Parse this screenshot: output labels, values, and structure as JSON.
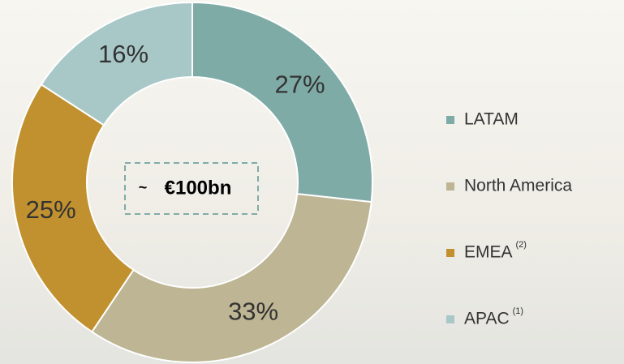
{
  "chart_data": {
    "type": "donut",
    "categories": [
      "LATAM",
      "North America",
      "EMEA",
      "APAC"
    ],
    "values": [
      27,
      33,
      25,
      16
    ],
    "value_labels": [
      "27%",
      "33%",
      "25%",
      "16%"
    ],
    "colors": [
      "#7faba7",
      "#bdb593",
      "#c1912f",
      "#a8c7c7"
    ],
    "legend_superscripts": [
      null,
      null,
      "(2)",
      "(1)"
    ],
    "center_label_prefix": "~",
    "center_label": "€100bn"
  }
}
